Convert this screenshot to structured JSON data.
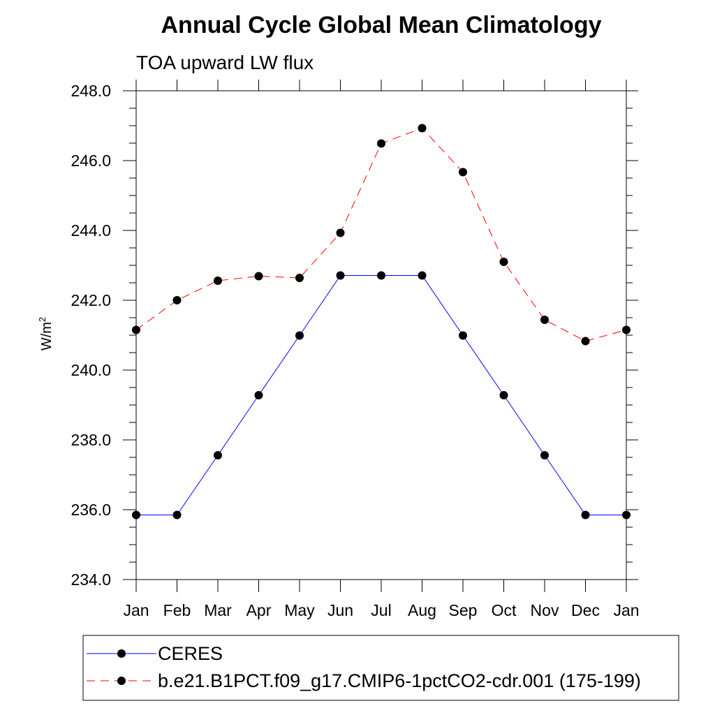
{
  "chart_data": {
    "type": "line",
    "title": "Annual Cycle Global Mean Climatology",
    "subtitle": "TOA upward LW flux",
    "ylabel_main": "W/m",
    "ylabel_sup": "2",
    "xlabel": "",
    "categories": [
      "Jan",
      "Feb",
      "Mar",
      "Apr",
      "May",
      "Jun",
      "Jul",
      "Aug",
      "Sep",
      "Oct",
      "Nov",
      "Dec",
      "Jan"
    ],
    "ylim": [
      234.0,
      248.0
    ],
    "yticks": [
      "234.0",
      "236.0",
      "238.0",
      "240.0",
      "242.0",
      "244.0",
      "246.0",
      "248.0"
    ],
    "grid": false,
    "legend_position": "bottom",
    "series": [
      {
        "name": "CERES",
        "color": "#0000ff",
        "dash": "solid",
        "marker": "filled-circle",
        "values": [
          235.85,
          235.85,
          237.56,
          239.28,
          240.99,
          242.71,
          242.71,
          242.71,
          240.99,
          239.28,
          237.56,
          235.85,
          235.85
        ]
      },
      {
        "name": "b.e21.B1PCT.f09_g17.CMIP6-1pctCO2-cdr.001 (175-199)",
        "color": "#ff0000",
        "dash": "dashed",
        "marker": "filled-circle",
        "values": [
          241.15,
          242.0,
          242.56,
          242.69,
          242.64,
          243.93,
          246.49,
          246.93,
          245.67,
          243.1,
          241.44,
          240.83,
          241.15
        ]
      }
    ]
  }
}
